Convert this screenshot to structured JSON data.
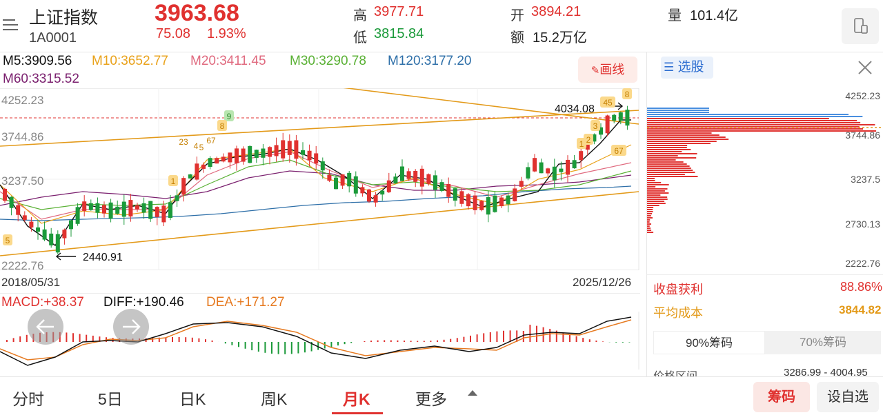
{
  "header": {
    "menu_icon": "list-menu-icon",
    "index_name": "上证指数",
    "index_code": "1A0001",
    "price": "3963.68",
    "change": "75.08",
    "change_pct": "1.93%",
    "high_label": "高",
    "high_value": "3977.71",
    "low_label": "低",
    "low_value": "3815.84",
    "open_label": "开",
    "open_value": "3894.21",
    "amount_label": "额",
    "amount_value": "15.2万亿",
    "volume_label": "量",
    "volume_value": "101.4亿",
    "device_icon": "phone-landscape-icon"
  },
  "ma_legend": {
    "m5": "M5:3909.56",
    "m10": "M10:3652.77",
    "m20": "M20:3411.45",
    "m30": "M30:3290.78",
    "m120": "M120:3177.20",
    "m60": "M60:3315.52"
  },
  "draw_button": "画线",
  "price_axis": {
    "left": [
      "4252.23",
      "3744.86",
      "3237.50",
      "2730.13",
      "2222.76"
    ],
    "right": [
      "4252.23",
      "3744.86",
      "3237.5",
      "2730.13",
      "2222.76"
    ]
  },
  "annotations": {
    "max_price": "4034.08",
    "min_price": "2440.91"
  },
  "dates": {
    "start": "2018/05/31",
    "end": "2025/12/26"
  },
  "macd": {
    "macd_label": "MACD:+38.37",
    "diff_label": "DIFF:+190.46",
    "dea_label": "DEA:+171.27"
  },
  "nav": {
    "prev_icon": "arrow-left-icon",
    "next_icon": "arrow-right-icon"
  },
  "sidebar": {
    "select_label": "选股",
    "close_icon": "close-icon",
    "profit_label": "收盘获利",
    "profit_value": "88.86%",
    "cost_label": "平均成本",
    "cost_value": "3844.82",
    "tab_90": "90%筹码",
    "tab_70": "70%筹码",
    "range_label": "价格区间",
    "range_value": "3286.99 - 4004.95"
  },
  "tabs": {
    "items": [
      "分时",
      "5日",
      "日K",
      "周K",
      "月K",
      "更多"
    ],
    "active": "月K",
    "chips_button": "筹码",
    "watchlist_button": "设自选"
  },
  "chart_data": {
    "type": "candlestick",
    "period": "monthly",
    "ylim": [
      2222.76,
      4252.23
    ],
    "yticks": [
      4252.23,
      3744.86,
      3237.5,
      2730.13,
      2222.76
    ],
    "x_start": "2018/05/31",
    "x_end": "2025/12/26",
    "last_close": 3963.68,
    "annotated_high": 4034.08,
    "annotated_low": 2440.91,
    "ma": [
      {
        "name": "M5",
        "value": 3909.56,
        "color": "#111111"
      },
      {
        "name": "M10",
        "value": 3652.77,
        "color": "#e9a21b"
      },
      {
        "name": "M20",
        "value": 3411.45,
        "color": "#e06a7f"
      },
      {
        "name": "M30",
        "value": 3290.78,
        "color": "#5ab135"
      },
      {
        "name": "M60",
        "value": 3315.52,
        "color": "#7a1f6e"
      },
      {
        "name": "M120",
        "value": 3177.2,
        "color": "#2e6fa8"
      }
    ],
    "macd": {
      "macd": 38.37,
      "diff": 190.46,
      "dea": 171.27
    },
    "chips": {
      "profit_ratio_pct": 88.86,
      "avg_cost": 3844.82,
      "range": [
        3286.99,
        4004.95
      ]
    }
  }
}
